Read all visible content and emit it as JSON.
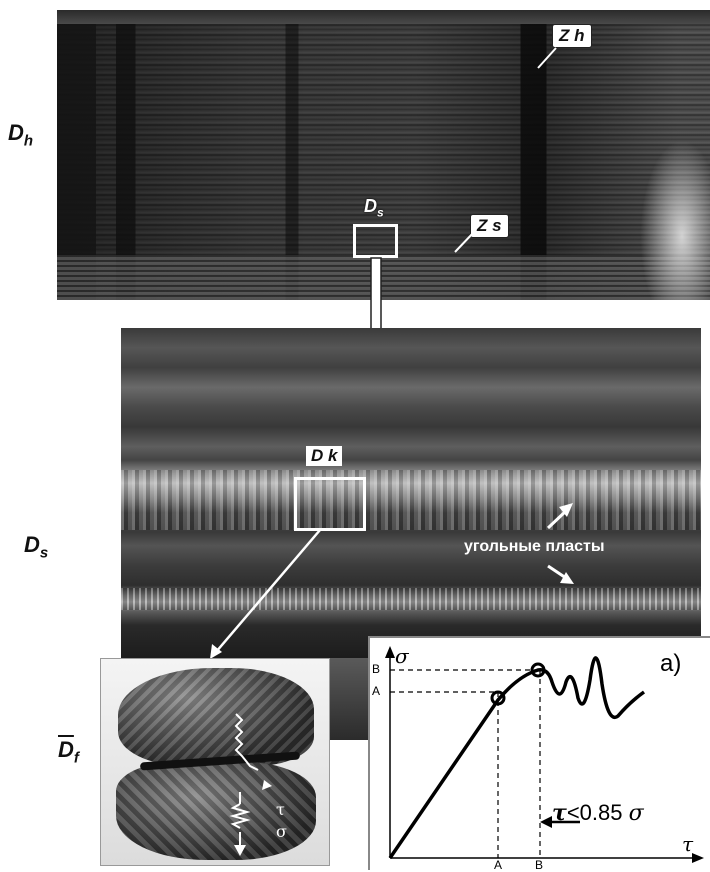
{
  "labels": {
    "dh": "D",
    "dh_sub": "h",
    "ds_left": "D",
    "ds_left_sub": "s",
    "df": "D",
    "df_sub": "f",
    "ds_box": "D",
    "ds_box_sub": "s",
    "zh": "Z h",
    "zs": "Z s",
    "dk": "D k",
    "coal_seams": "угольные пласты"
  },
  "sample": {
    "tau_symbol": "τ",
    "sigma_symbol": "σ"
  },
  "chart": {
    "panel_label": "a)",
    "y_axis_symbol": "σ",
    "x_axis_symbol": "τ",
    "y_tick_b": "B",
    "y_tick_a": "A",
    "x_tick_a": "A",
    "x_tick_b": "B",
    "condition_tau": "τ",
    "condition_text": "<0.85 ",
    "condition_sigma": "σ"
  },
  "colors": {
    "frame": "#ffffff",
    "curve": "#000000"
  }
}
